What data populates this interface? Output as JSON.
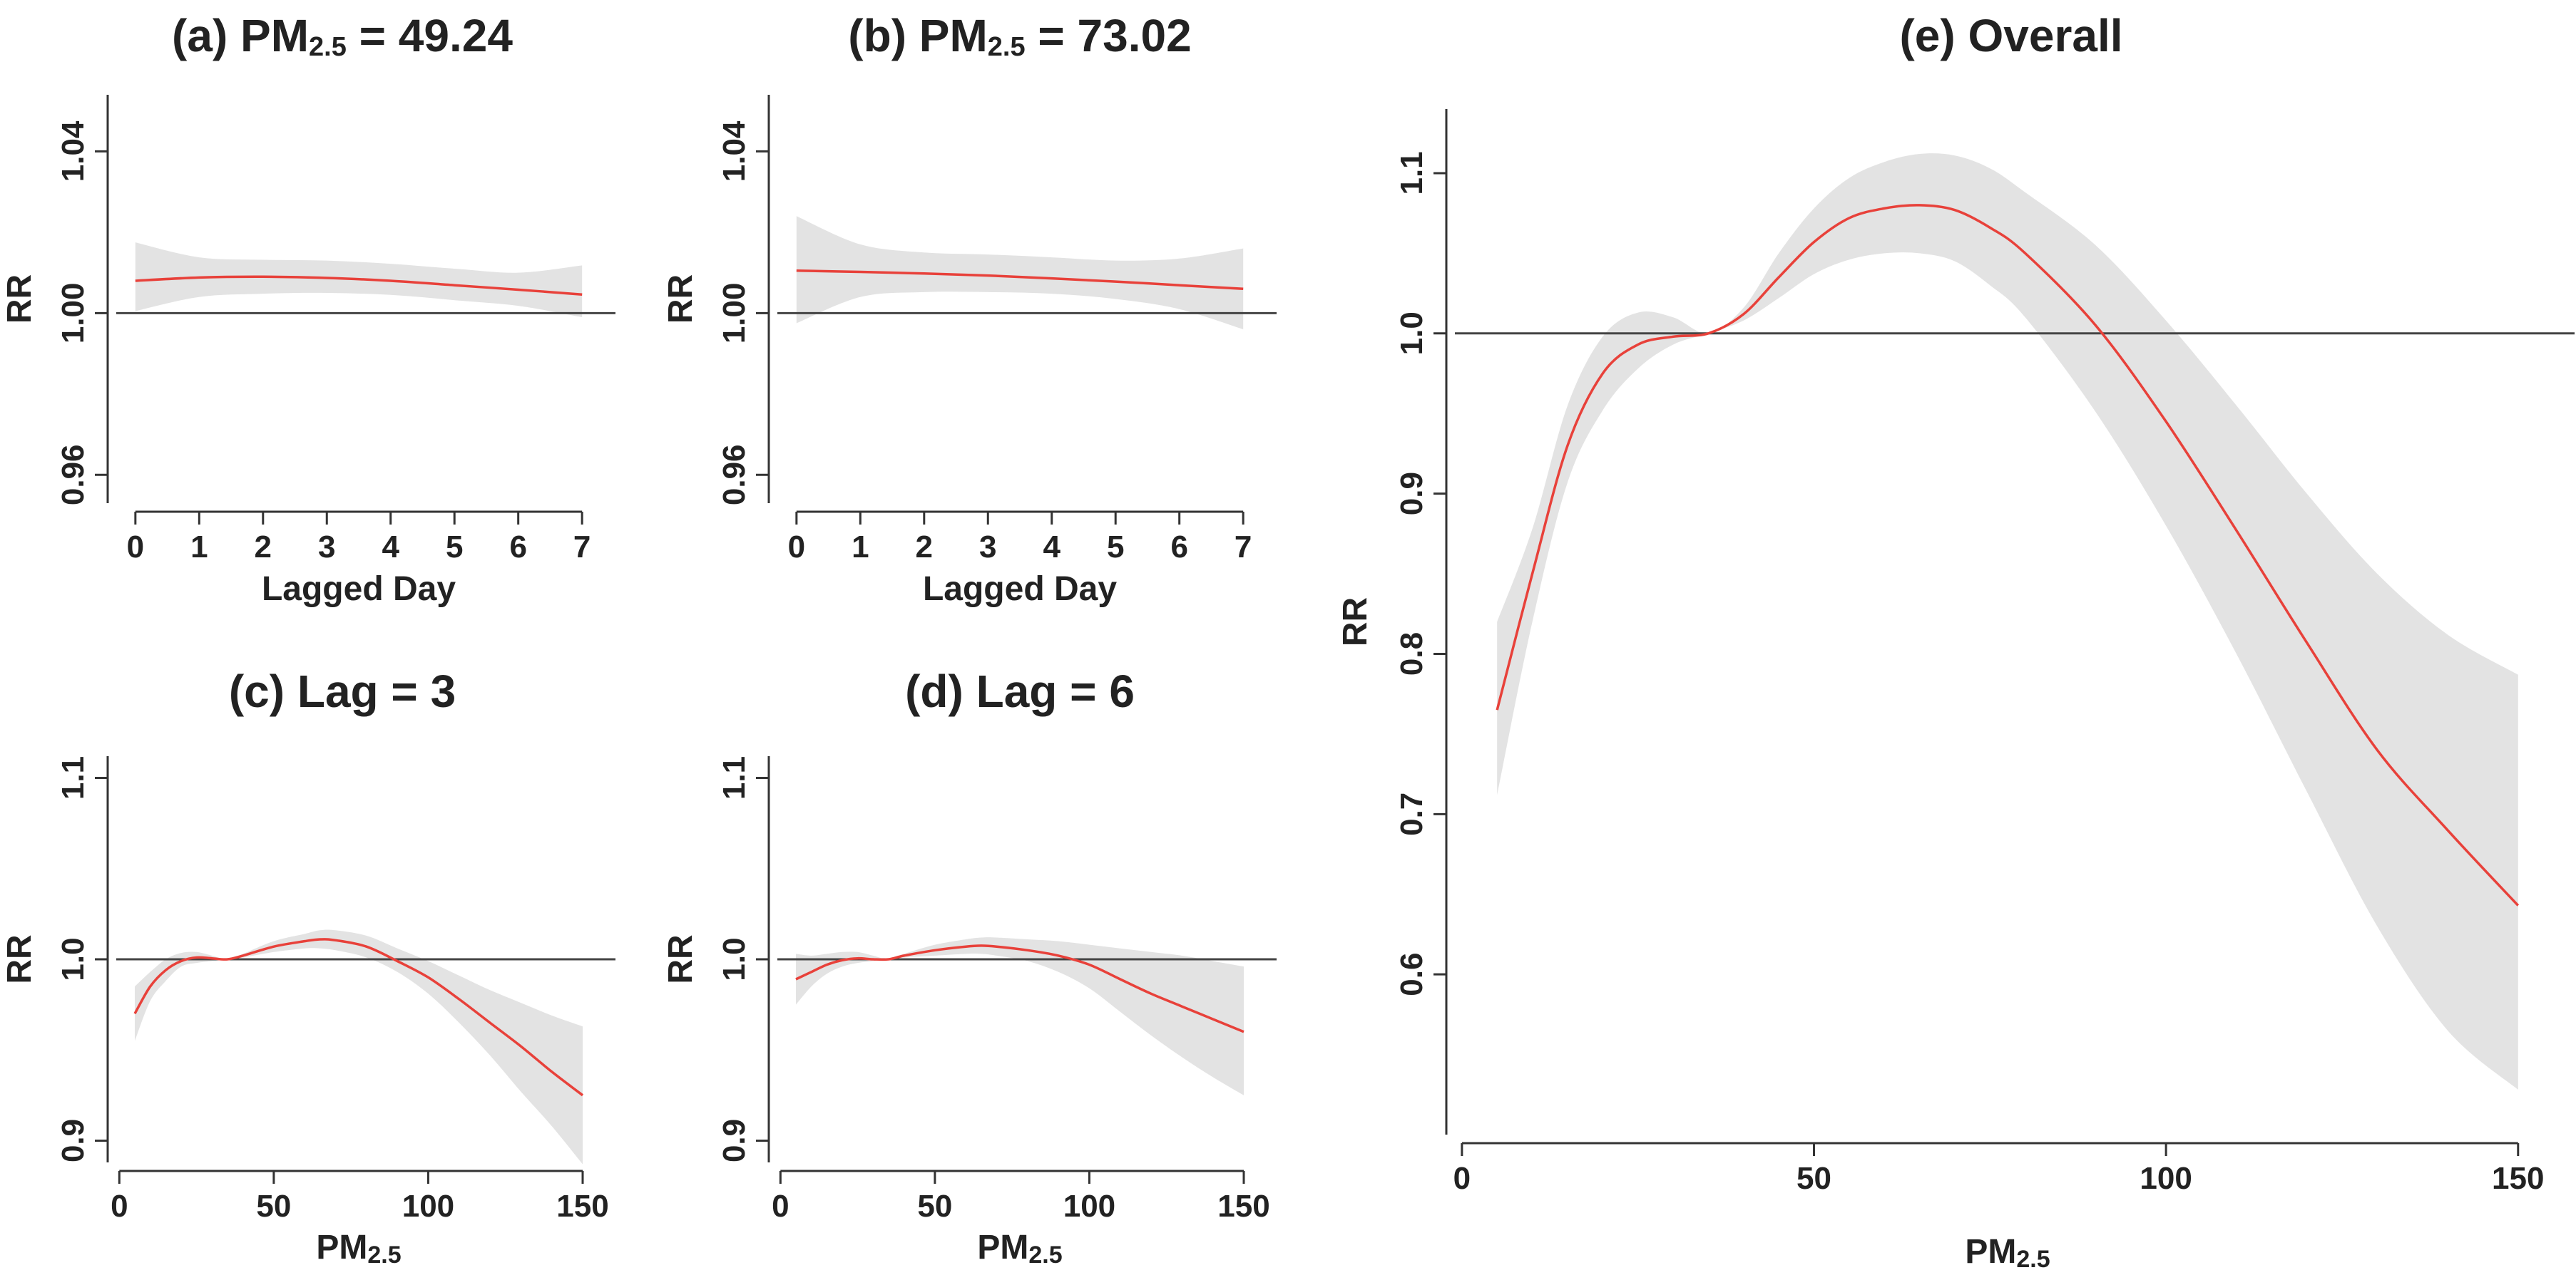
{
  "colors": {
    "curve": "#e8413a",
    "band": "#e3e3e3",
    "reference": "#444444",
    "axis": "#333333"
  },
  "chart_data": [
    {
      "id": "a",
      "type": "line",
      "title_main": "(a) PM",
      "title_sub": "2.5",
      "title_tail": " = 49.24",
      "xlabel": "Lagged Day",
      "ylabel": "RR",
      "xlim": [
        -0.3,
        7.3
      ],
      "ylim": [
        0.953,
        1.054
      ],
      "xticks": [
        0,
        1,
        2,
        3,
        4,
        5,
        6,
        7
      ],
      "yticks": [
        0.96,
        1.0,
        1.04
      ],
      "ytick_labels": [
        "0.96",
        "1.00",
        "1.04"
      ],
      "reference_y": 1.0,
      "x": [
        0,
        1,
        2,
        3,
        4,
        5,
        6,
        7
      ],
      "series": [
        {
          "name": "RR",
          "values": [
            1.008,
            1.0088,
            1.009,
            1.0087,
            1.008,
            1.0069,
            1.0058,
            1.0046
          ]
        },
        {
          "name": "CI lower",
          "values": [
            1.0005,
            1.004,
            1.0048,
            1.005,
            1.0045,
            1.0032,
            1.0018,
            0.999
          ]
        },
        {
          "name": "CI upper",
          "values": [
            1.0175,
            1.0138,
            1.0132,
            1.013,
            1.0122,
            1.011,
            1.01,
            1.0118
          ]
        }
      ]
    },
    {
      "id": "b",
      "type": "line",
      "title_main": "(b) PM",
      "title_sub": "2.5",
      "title_tail": " = 73.02",
      "xlabel": "Lagged Day",
      "ylabel": "RR",
      "xlim": [
        -0.3,
        7.3
      ],
      "ylim": [
        0.953,
        1.054
      ],
      "xticks": [
        0,
        1,
        2,
        3,
        4,
        5,
        6,
        7
      ],
      "yticks": [
        0.96,
        1.0,
        1.04
      ],
      "ytick_labels": [
        "0.96",
        "1.00",
        "1.04"
      ],
      "reference_y": 1.0,
      "x": [
        0,
        1,
        2,
        3,
        4,
        5,
        6,
        7
      ],
      "series": [
        {
          "name": "RR",
          "values": [
            1.0105,
            1.0102,
            1.0098,
            1.0093,
            1.0086,
            1.0078,
            1.0069,
            1.006
          ]
        },
        {
          "name": "CI lower",
          "values": [
            0.9975,
            1.004,
            1.0052,
            1.0052,
            1.0048,
            1.0035,
            1.001,
            0.996
          ]
        },
        {
          "name": "CI upper",
          "values": [
            1.024,
            1.017,
            1.015,
            1.0145,
            1.0138,
            1.013,
            1.0135,
            1.016
          ]
        }
      ]
    },
    {
      "id": "c",
      "type": "line",
      "title_main": "(c) Lag = 3",
      "title_sub": "",
      "title_tail": "",
      "xlabel": "PM",
      "xlabel_sub": "2.5",
      "ylabel": "RR",
      "xlim": [
        -1,
        156
      ],
      "ylim": [
        0.888,
        1.112
      ],
      "xticks": [
        0,
        50,
        100,
        150
      ],
      "yticks": [
        0.9,
        1.0,
        1.1
      ],
      "ytick_labels": [
        "0.9",
        "1.0",
        "1.1"
      ],
      "reference_y": 1.0,
      "x": [
        5,
        10,
        15,
        20,
        25,
        30,
        35,
        40,
        50,
        60,
        65,
        70,
        80,
        90,
        100,
        110,
        120,
        130,
        140,
        150
      ],
      "series": [
        {
          "name": "RR",
          "values": [
            0.97,
            0.985,
            0.994,
            0.999,
            1.001,
            1.0005,
            1.0,
            1.002,
            1.007,
            1.01,
            1.011,
            1.0105,
            1.007,
            0.999,
            0.99,
            0.978,
            0.965,
            0.952,
            0.938,
            0.925
          ]
        },
        {
          "name": "CI lower",
          "values": [
            0.955,
            0.977,
            0.988,
            0.996,
            0.998,
            0.999,
            1.0,
            1.001,
            1.004,
            1.006,
            1.006,
            1.005,
            1.001,
            0.993,
            0.981,
            0.965,
            0.947,
            0.927,
            0.908,
            0.887
          ]
        },
        {
          "name": "CI upper",
          "values": [
            0.985,
            0.993,
            1.0,
            1.0035,
            1.004,
            1.002,
            1.0,
            1.003,
            1.01,
            1.014,
            1.016,
            1.016,
            1.013,
            1.006,
            0.999,
            0.991,
            0.983,
            0.976,
            0.969,
            0.963
          ]
        }
      ]
    },
    {
      "id": "d",
      "type": "line",
      "title_main": "(d) Lag = 6",
      "title_sub": "",
      "title_tail": "",
      "xlabel": "PM",
      "xlabel_sub": "2.5",
      "ylabel": "RR",
      "xlim": [
        -1,
        156
      ],
      "ylim": [
        0.888,
        1.112
      ],
      "xticks": [
        0,
        50,
        100,
        150
      ],
      "yticks": [
        0.9,
        1.0,
        1.1
      ],
      "ytick_labels": [
        "0.9",
        "1.0",
        "1.1"
      ],
      "reference_y": 1.0,
      "x": [
        5,
        10,
        15,
        20,
        25,
        30,
        35,
        40,
        50,
        60,
        65,
        70,
        80,
        90,
        100,
        110,
        120,
        130,
        140,
        150
      ],
      "series": [
        {
          "name": "RR",
          "values": [
            0.989,
            0.993,
            0.997,
            0.9995,
            1.0005,
            1.0,
            1.0,
            1.002,
            1.005,
            1.007,
            1.0075,
            1.007,
            1.005,
            1.002,
            0.997,
            0.989,
            0.981,
            0.974,
            0.967,
            0.96
          ]
        },
        {
          "name": "CI lower",
          "values": [
            0.975,
            0.985,
            0.992,
            0.996,
            0.998,
            0.999,
            1.0,
            1.001,
            1.002,
            1.003,
            1.003,
            1.002,
            0.999,
            0.993,
            0.984,
            0.971,
            0.958,
            0.946,
            0.935,
            0.925
          ]
        },
        {
          "name": "CI upper",
          "values": [
            1.003,
            1.002,
            1.003,
            1.004,
            1.004,
            1.002,
            1.0,
            1.003,
            1.008,
            1.011,
            1.012,
            1.012,
            1.011,
            1.01,
            1.008,
            1.006,
            1.004,
            1.002,
            0.999,
            0.996
          ]
        }
      ]
    },
    {
      "id": "e",
      "type": "line",
      "title_main": "(e) Overall",
      "title_sub": "",
      "title_tail": "",
      "xlabel": "PM",
      "xlabel_sub": "2.5",
      "ylabel": "RR",
      "xlim": [
        -1,
        156
      ],
      "ylim": [
        0.5,
        1.14
      ],
      "xticks": [
        0,
        50,
        100,
        150
      ],
      "yticks": [
        0.6,
        0.7,
        0.8,
        0.9,
        1.0,
        1.1
      ],
      "ytick_labels": [
        "0.6",
        "0.7",
        "0.8",
        "0.9",
        "1.0",
        "1.1"
      ],
      "reference_y": 1.0,
      "x": [
        5,
        10,
        15,
        20,
        25,
        30,
        35,
        40,
        45,
        50,
        55,
        60,
        65,
        70,
        75,
        80,
        90,
        100,
        110,
        120,
        130,
        140,
        150
      ],
      "series": [
        {
          "name": "RR",
          "values": [
            0.765,
            0.85,
            0.93,
            0.975,
            0.993,
            0.998,
            1.0,
            1.012,
            1.035,
            1.057,
            1.072,
            1.078,
            1.08,
            1.077,
            1.066,
            1.05,
            1.005,
            0.945,
            0.877,
            0.807,
            0.74,
            0.69,
            0.643
          ]
        },
        {
          "name": "CI lower",
          "values": [
            0.712,
            0.82,
            0.907,
            0.952,
            0.978,
            0.993,
            1.0,
            1.008,
            1.022,
            1.037,
            1.046,
            1.05,
            1.05,
            1.045,
            1.03,
            1.01,
            0.951,
            0.88,
            0.8,
            0.714,
            0.63,
            0.565,
            0.528
          ]
        },
        {
          "name": "CI upper",
          "values": [
            0.82,
            0.878,
            0.955,
            0.998,
            1.013,
            1.01,
            1.0,
            1.016,
            1.05,
            1.078,
            1.097,
            1.107,
            1.112,
            1.111,
            1.103,
            1.088,
            1.055,
            1.008,
            0.955,
            0.9,
            0.85,
            0.812,
            0.787
          ]
        }
      ]
    }
  ]
}
